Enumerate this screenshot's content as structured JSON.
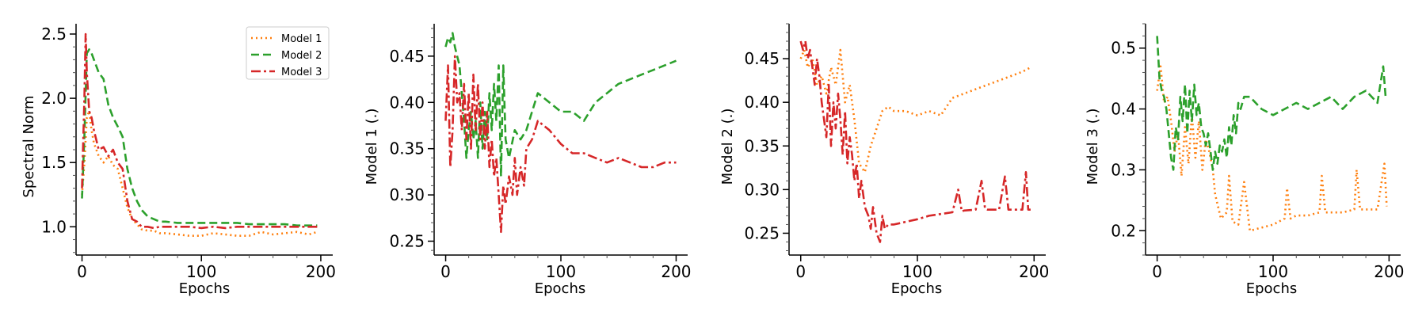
{
  "colors": {
    "model1": "#ff7f0e",
    "model2": "#2ca02c",
    "model3": "#d62728"
  },
  "chart_data": [
    {
      "type": "line",
      "xlabel": "Epochs",
      "ylabel": "Spectral Norm",
      "xlim": [
        -5,
        210
      ],
      "ylim": [
        0.78,
        2.58
      ],
      "xticks": [
        0,
        100,
        200
      ],
      "yticks": [
        1.0,
        1.5,
        2.0,
        2.5
      ],
      "ytick_labels": [
        "1.0",
        "1.5",
        "2.0",
        "2.5"
      ],
      "legend": {
        "placement": "top-right",
        "entries": [
          "Model 1",
          "Model 2",
          "Model 3"
        ]
      },
      "series": [
        {
          "name": "Model 1",
          "style": "dotted",
          "color": "#ff7f0e",
          "x": [
            0,
            2,
            4,
            6,
            8,
            10,
            14,
            18,
            22,
            26,
            30,
            34,
            38,
            42,
            46,
            50,
            55,
            60,
            65,
            70,
            80,
            90,
            100,
            110,
            120,
            130,
            140,
            150,
            160,
            170,
            180,
            190,
            197
          ],
          "y": [
            1.25,
            1.5,
            1.85,
            1.9,
            1.75,
            1.65,
            1.55,
            1.5,
            1.55,
            1.48,
            1.45,
            1.3,
            1.15,
            1.06,
            1.02,
            0.98,
            0.97,
            0.97,
            0.95,
            0.95,
            0.94,
            0.93,
            0.93,
            0.95,
            0.94,
            0.93,
            0.93,
            0.96,
            0.94,
            0.95,
            0.96,
            0.94,
            0.96
          ]
        },
        {
          "name": "Model 2",
          "style": "dashed",
          "color": "#2ca02c",
          "x": [
            0,
            2,
            4,
            6,
            8,
            10,
            14,
            18,
            22,
            26,
            30,
            34,
            38,
            42,
            46,
            50,
            55,
            60,
            65,
            70,
            80,
            90,
            100,
            110,
            120,
            130,
            140,
            150,
            160,
            170,
            180,
            190,
            197
          ],
          "y": [
            1.22,
            1.7,
            2.35,
            2.38,
            2.35,
            2.3,
            2.2,
            2.15,
            1.95,
            1.85,
            1.78,
            1.7,
            1.45,
            1.3,
            1.2,
            1.13,
            1.08,
            1.06,
            1.04,
            1.04,
            1.03,
            1.03,
            1.03,
            1.03,
            1.03,
            1.03,
            1.02,
            1.02,
            1.02,
            1.02,
            1.01,
            1.01,
            1.01
          ]
        },
        {
          "name": "Model 3",
          "style": "dashdot",
          "color": "#d62728",
          "x": [
            0,
            2,
            3,
            4,
            6,
            8,
            10,
            14,
            18,
            22,
            26,
            30,
            34,
            38,
            42,
            46,
            50,
            55,
            60,
            65,
            70,
            80,
            90,
            100,
            110,
            120,
            130,
            140,
            150,
            160,
            170,
            180,
            190,
            197
          ],
          "y": [
            1.3,
            2.0,
            2.5,
            2.2,
            1.9,
            1.85,
            1.75,
            1.6,
            1.62,
            1.55,
            1.6,
            1.5,
            1.45,
            1.2,
            1.06,
            1.04,
            1.0,
            1.0,
            0.99,
            1.0,
            1.0,
            1.0,
            1.0,
            0.99,
            1.0,
            0.99,
            1.0,
            1.0,
            1.0,
            1.0,
            1.0,
            1.0,
            1.0,
            1.0
          ]
        }
      ]
    },
    {
      "type": "line",
      "xlabel": "Epochs",
      "ylabel": "Model 1 (.)",
      "xlim": [
        -10,
        210
      ],
      "ylim": [
        0.235,
        0.485
      ],
      "xticks": [
        0,
        100,
        200
      ],
      "yticks": [
        0.25,
        0.3,
        0.35,
        0.4,
        0.45
      ],
      "ytick_labels": [
        "0.25",
        "0.30",
        "0.35",
        "0.40",
        "0.45"
      ],
      "series": [
        {
          "name": "Model 2",
          "style": "dashed",
          "color": "#2ca02c",
          "x": [
            0,
            2,
            4,
            6,
            8,
            10,
            12,
            14,
            16,
            18,
            20,
            22,
            24,
            26,
            28,
            30,
            32,
            34,
            36,
            38,
            40,
            42,
            44,
            46,
            48,
            50,
            52,
            55,
            60,
            65,
            70,
            75,
            80,
            90,
            100,
            110,
            120,
            130,
            140,
            150,
            160,
            170,
            180,
            190,
            200
          ],
          "y": [
            0.46,
            0.47,
            0.465,
            0.475,
            0.46,
            0.45,
            0.44,
            0.41,
            0.38,
            0.34,
            0.37,
            0.39,
            0.36,
            0.38,
            0.34,
            0.4,
            0.35,
            0.39,
            0.36,
            0.41,
            0.37,
            0.42,
            0.38,
            0.44,
            0.32,
            0.44,
            0.36,
            0.34,
            0.37,
            0.36,
            0.37,
            0.39,
            0.41,
            0.4,
            0.39,
            0.39,
            0.38,
            0.4,
            0.41,
            0.42,
            0.425,
            0.43,
            0.435,
            0.44,
            0.445
          ]
        },
        {
          "name": "Model 3",
          "style": "dashdot",
          "color": "#d62728",
          "x": [
            0,
            2,
            4,
            6,
            8,
            10,
            12,
            14,
            16,
            18,
            20,
            22,
            24,
            26,
            28,
            30,
            32,
            34,
            36,
            38,
            40,
            42,
            44,
            46,
            48,
            50,
            52,
            55,
            58,
            60,
            62,
            65,
            68,
            70,
            75,
            80,
            90,
            100,
            110,
            120,
            130,
            140,
            150,
            160,
            170,
            180,
            190,
            200
          ],
          "y": [
            0.38,
            0.44,
            0.33,
            0.37,
            0.45,
            0.4,
            0.41,
            0.37,
            0.42,
            0.36,
            0.41,
            0.35,
            0.43,
            0.37,
            0.42,
            0.36,
            0.4,
            0.35,
            0.39,
            0.33,
            0.36,
            0.32,
            0.34,
            0.3,
            0.26,
            0.31,
            0.29,
            0.32,
            0.3,
            0.34,
            0.3,
            0.33,
            0.31,
            0.35,
            0.36,
            0.38,
            0.37,
            0.355,
            0.345,
            0.345,
            0.34,
            0.335,
            0.34,
            0.335,
            0.33,
            0.33,
            0.335,
            0.335
          ]
        }
      ]
    },
    {
      "type": "line",
      "xlabel": "Epochs",
      "ylabel": "Model 2 (.)",
      "xlim": [
        -10,
        210
      ],
      "ylim": [
        0.225,
        0.49
      ],
      "xticks": [
        0,
        100,
        200
      ],
      "yticks": [
        0.25,
        0.3,
        0.35,
        0.4,
        0.45
      ],
      "ytick_labels": [
        "0.25",
        "0.30",
        "0.35",
        "0.40",
        "0.45"
      ],
      "series": [
        {
          "name": "Model 1",
          "style": "dotted",
          "color": "#ff7f0e",
          "x": [
            0,
            3,
            6,
            10,
            14,
            18,
            22,
            26,
            30,
            34,
            38,
            42,
            46,
            50,
            55,
            60,
            65,
            70,
            75,
            80,
            90,
            100,
            110,
            120,
            130,
            140,
            150,
            160,
            170,
            180,
            190,
            197
          ],
          "y": [
            0.45,
            0.46,
            0.44,
            0.45,
            0.42,
            0.43,
            0.41,
            0.44,
            0.42,
            0.46,
            0.4,
            0.42,
            0.38,
            0.33,
            0.32,
            0.35,
            0.37,
            0.39,
            0.395,
            0.39,
            0.39,
            0.385,
            0.39,
            0.385,
            0.405,
            0.41,
            0.415,
            0.42,
            0.425,
            0.43,
            0.435,
            0.44
          ]
        },
        {
          "name": "Model 3",
          "style": "dashdot",
          "color": "#d62728",
          "x": [
            0,
            2,
            4,
            6,
            8,
            10,
            12,
            14,
            16,
            18,
            20,
            22,
            24,
            26,
            28,
            30,
            32,
            34,
            36,
            38,
            40,
            42,
            44,
            46,
            48,
            50,
            52,
            55,
            58,
            60,
            62,
            65,
            68,
            70,
            72,
            75,
            80,
            90,
            100,
            110,
            120,
            130,
            135,
            138,
            140,
            150,
            155,
            158,
            160,
            170,
            175,
            178,
            180,
            190,
            193,
            195,
            197
          ],
          "y": [
            0.47,
            0.46,
            0.47,
            0.45,
            0.46,
            0.44,
            0.42,
            0.45,
            0.43,
            0.4,
            0.38,
            0.36,
            0.42,
            0.35,
            0.4,
            0.37,
            0.41,
            0.38,
            0.34,
            0.39,
            0.33,
            0.36,
            0.34,
            0.31,
            0.33,
            0.29,
            0.31,
            0.28,
            0.27,
            0.255,
            0.28,
            0.25,
            0.24,
            0.27,
            0.255,
            0.26,
            0.26,
            0.263,
            0.266,
            0.27,
            0.272,
            0.274,
            0.3,
            0.275,
            0.276,
            0.277,
            0.31,
            0.278,
            0.277,
            0.277,
            0.315,
            0.277,
            0.277,
            0.277,
            0.32,
            0.277,
            0.277
          ]
        }
      ]
    },
    {
      "type": "line",
      "xlabel": "Epochs",
      "ylabel": "Model 3 (.)",
      "xlim": [
        -10,
        210
      ],
      "ylim": [
        0.16,
        0.54
      ],
      "xticks": [
        0,
        100,
        200
      ],
      "yticks": [
        0.2,
        0.3,
        0.4,
        0.5
      ],
      "ytick_labels": [
        "0.2",
        "0.3",
        "0.4",
        "0.5"
      ],
      "series": [
        {
          "name": "Model 1",
          "style": "dotted",
          "color": "#ff7f0e",
          "x": [
            0,
            3,
            6,
            9,
            12,
            15,
            18,
            21,
            24,
            27,
            30,
            33,
            36,
            39,
            42,
            45,
            48,
            50,
            55,
            60,
            62,
            65,
            70,
            75,
            80,
            90,
            100,
            110,
            112,
            115,
            120,
            130,
            140,
            142,
            145,
            150,
            160,
            170,
            172,
            175,
            180,
            190,
            196,
            198
          ],
          "y": [
            0.43,
            0.47,
            0.41,
            0.42,
            0.38,
            0.33,
            0.36,
            0.29,
            0.37,
            0.31,
            0.39,
            0.32,
            0.38,
            0.3,
            0.35,
            0.33,
            0.3,
            0.26,
            0.22,
            0.23,
            0.29,
            0.215,
            0.21,
            0.28,
            0.2,
            0.205,
            0.21,
            0.22,
            0.27,
            0.22,
            0.225,
            0.225,
            0.23,
            0.29,
            0.23,
            0.23,
            0.23,
            0.235,
            0.3,
            0.235,
            0.235,
            0.235,
            0.31,
            0.24
          ]
        },
        {
          "name": "Model 2",
          "style": "dashed",
          "color": "#2ca02c",
          "x": [
            0,
            2,
            4,
            6,
            8,
            10,
            12,
            14,
            16,
            18,
            20,
            22,
            24,
            26,
            28,
            30,
            32,
            34,
            36,
            38,
            40,
            42,
            44,
            46,
            48,
            50,
            52,
            54,
            56,
            58,
            60,
            62,
            64,
            66,
            68,
            70,
            72,
            75,
            80,
            90,
            100,
            110,
            120,
            130,
            140,
            150,
            160,
            170,
            180,
            190,
            195,
            197
          ],
          "y": [
            0.52,
            0.45,
            0.43,
            0.42,
            0.4,
            0.36,
            0.32,
            0.3,
            0.37,
            0.35,
            0.42,
            0.38,
            0.44,
            0.36,
            0.43,
            0.38,
            0.44,
            0.39,
            0.41,
            0.37,
            0.36,
            0.34,
            0.36,
            0.33,
            0.3,
            0.33,
            0.31,
            0.34,
            0.33,
            0.35,
            0.32,
            0.37,
            0.34,
            0.39,
            0.36,
            0.41,
            0.4,
            0.42,
            0.42,
            0.4,
            0.39,
            0.4,
            0.41,
            0.4,
            0.41,
            0.42,
            0.4,
            0.42,
            0.43,
            0.41,
            0.47,
            0.42
          ]
        }
      ]
    }
  ]
}
